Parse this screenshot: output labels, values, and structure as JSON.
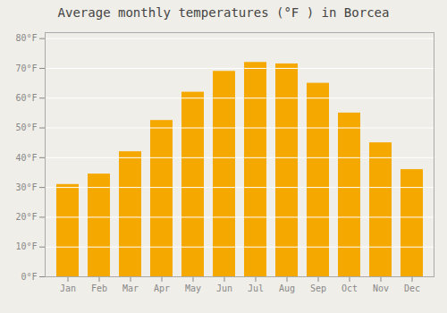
{
  "chart_data": {
    "type": "bar",
    "title": "Average monthly temperatures (°F ) in Borcea",
    "categories": [
      "Jan",
      "Feb",
      "Mar",
      "Apr",
      "May",
      "Jun",
      "Jul",
      "Aug",
      "Sep",
      "Oct",
      "Nov",
      "Dec"
    ],
    "values": [
      31,
      34.5,
      42,
      52.5,
      62,
      69,
      72,
      71.5,
      65,
      55,
      45,
      36
    ],
    "color": "#F5A800",
    "ylim": [
      0,
      82
    ],
    "yticks": [
      {
        "value": 0,
        "label": "0°F"
      },
      {
        "value": 10,
        "label": "10°F"
      },
      {
        "value": 20,
        "label": "20°F"
      },
      {
        "value": 30,
        "label": "30°F"
      },
      {
        "value": 40,
        "label": "40°F"
      },
      {
        "value": 50,
        "label": "50°F"
      },
      {
        "value": 60,
        "label": "60°F"
      },
      {
        "value": 70,
        "label": "70°F"
      },
      {
        "value": 80,
        "label": "80°F"
      }
    ],
    "grid": true
  }
}
